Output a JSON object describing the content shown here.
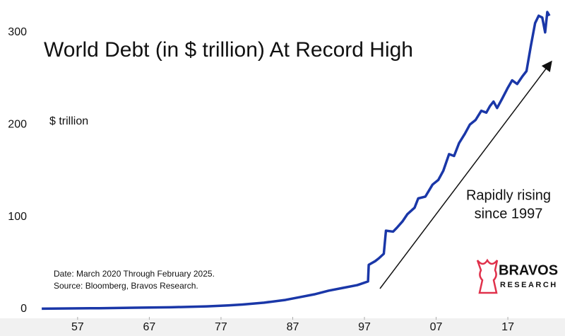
{
  "chart_data": {
    "type": "line",
    "title": "World Debt (in $ trillion) At Record High",
    "y_label": "$ trillion",
    "annotation": [
      "Rapidly rising",
      "since 1997"
    ],
    "notes": [
      "Date: March 2020 Through February 2025.",
      "Source: Bloomberg, Bravos Research."
    ],
    "x": [
      1952,
      1960,
      1965,
      1970,
      1975,
      1978,
      1980,
      1983,
      1986,
      1988,
      1990,
      1992,
      1994,
      1996,
      1997.5,
      1997.6,
      1998.5,
      1999,
      1999.7,
      2000,
      2001,
      2001.5,
      2002.3,
      2003,
      2004,
      2004.5,
      2005.5,
      2006.5,
      2007.3,
      2008,
      2008.8,
      2009.5,
      2010.2,
      2011,
      2011.7,
      2012.5,
      2013.3,
      2014,
      2014.5,
      2015,
      2015.5,
      2016.2,
      2017,
      2017.6,
      2018.3,
      2019,
      2019.6,
      2020.2,
      2020.8,
      2021.3,
      2021.8,
      2022.2,
      2022.5,
      2022.8
    ],
    "series": [
      {
        "color": "#1a37a8",
        "values": [
          0.5,
          1,
          1.5,
          2,
          3,
          4,
          5,
          7,
          10,
          13,
          16,
          20,
          23,
          26,
          30,
          48,
          52,
          55,
          60,
          85,
          84,
          88,
          95,
          103,
          110,
          120,
          122,
          135,
          140,
          150,
          168,
          166,
          180,
          190,
          200,
          205,
          215,
          213,
          220,
          225,
          218,
          228,
          240,
          248,
          244,
          252,
          258,
          285,
          310,
          318,
          316,
          300,
          322,
          318
        ]
      }
    ],
    "xlim": [
      1951.3,
      2023
    ],
    "xticks": [
      {
        "value": 1957,
        "label": "57"
      },
      {
        "value": 1967,
        "label": "67"
      },
      {
        "value": 1977,
        "label": "77"
      },
      {
        "value": 1987,
        "label": "87"
      },
      {
        "value": 1997,
        "label": "97"
      },
      {
        "value": 2007,
        "label": "07"
      },
      {
        "value": 2017,
        "label": "17"
      }
    ],
    "ylim": [
      0,
      332
    ],
    "yticks": [
      0,
      100,
      200,
      300
    ],
    "grid": false
  },
  "logo": {
    "name": "BRAVOS",
    "subtitle": "RESEARCH"
  }
}
